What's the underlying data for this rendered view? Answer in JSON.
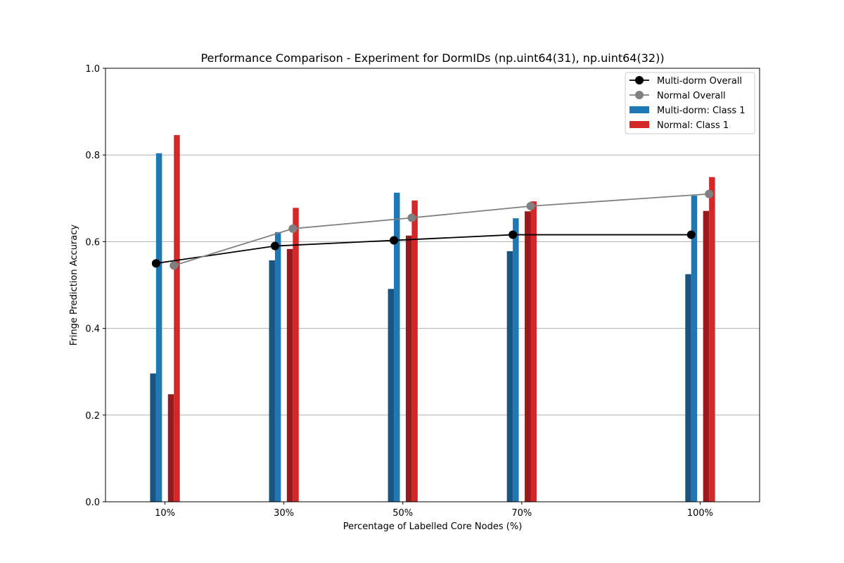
{
  "chart_data": {
    "type": "bar",
    "title": "Performance Comparison - Experiment for DormIDs (np.uint64(31), np.uint64(32))",
    "xlabel": "Percentage of Labelled Core Nodes (%)",
    "ylabel": "Fringe Prediction Accuracy",
    "x": [
      10,
      30,
      50,
      70,
      100
    ],
    "categories": [
      "10%",
      "30%",
      "50%",
      "70%",
      "100%"
    ],
    "ylim": [
      0,
      1.0
    ],
    "yticks": [
      "0.0",
      "0.2",
      "0.4",
      "0.6",
      "0.8",
      "1.0"
    ],
    "grid": "y",
    "legend_position": "top-right",
    "bar_series": [
      {
        "group": "Multi-dorm",
        "legend": "",
        "color": "#1a5480",
        "values": [
          0.296,
          0.557,
          0.491,
          0.578,
          0.525
        ]
      },
      {
        "group": "Multi-dorm",
        "legend": "Multi-dorm: Class 1",
        "color": "#1f77b4",
        "values": [
          0.804,
          0.622,
          0.713,
          0.654,
          0.706
        ]
      },
      {
        "group": "Normal",
        "legend": "",
        "color": "#961a1e",
        "values": [
          0.248,
          0.583,
          0.614,
          0.67,
          0.671
        ]
      },
      {
        "group": "Normal",
        "legend": "Normal: Class 1",
        "color": "#d62728",
        "values": [
          0.846,
          0.678,
          0.695,
          0.693,
          0.749
        ]
      }
    ],
    "line_series": [
      {
        "name": "Multi-dorm Overall",
        "color": "#000000",
        "values": [
          0.55,
          0.59,
          0.603,
          0.616,
          0.616
        ]
      },
      {
        "name": "Normal Overall",
        "color": "#808080",
        "values": [
          0.545,
          0.63,
          0.655,
          0.682,
          0.71
        ]
      }
    ]
  }
}
